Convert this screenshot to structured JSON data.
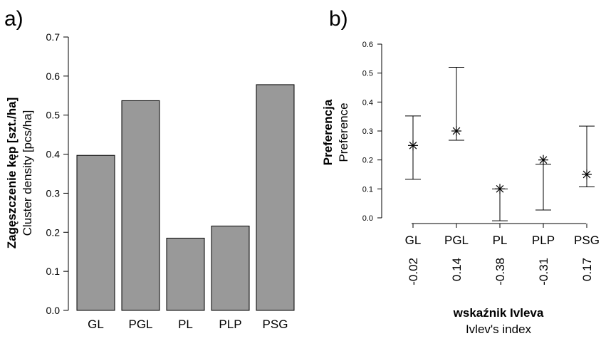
{
  "chart_data": [
    {
      "panel_label": "a)",
      "type": "bar",
      "categories": [
        "GL",
        "PGL",
        "PL",
        "PLP",
        "PSG"
      ],
      "values": [
        0.397,
        0.537,
        0.185,
        0.216,
        0.578
      ],
      "ylabel_bold": "Zagęszczenie kęp [szt./ha]",
      "ylabel": "Cluster density [pcs/ha]",
      "ylim": [
        0,
        0.7
      ],
      "yticks": [
        "0.0",
        "0.1",
        "0.2",
        "0.3",
        "0.4",
        "0.5",
        "0.6",
        "0.7"
      ],
      "bar_color": "#999999",
      "grid": false
    },
    {
      "panel_label": "b)",
      "type": "scatter",
      "categories": [
        "GL",
        "PGL",
        "PL",
        "PLP",
        "PSG"
      ],
      "points": [
        0.25,
        0.3,
        0.1,
        0.2,
        0.15
      ],
      "error_low": [
        0.133,
        0.268,
        -0.01,
        0.027,
        0.107
      ],
      "error_high": [
        0.352,
        0.52,
        0.1,
        0.185,
        0.317
      ],
      "ivlev_index": [
        "-0.02",
        "0.14",
        "-0.38",
        "-0.31",
        "0.17"
      ],
      "ylabel_bold": "Preferencja",
      "ylabel": "Preference",
      "xlabel_bold": "wskaźnik Ivleva",
      "xlabel": "Ivlev's index",
      "ylim": [
        0,
        0.6
      ],
      "yticks": [
        "0.0",
        "0.1",
        "0.2",
        "0.3",
        "0.4",
        "0.5",
        "0.6"
      ],
      "marker": "asterisk",
      "grid": false
    }
  ]
}
